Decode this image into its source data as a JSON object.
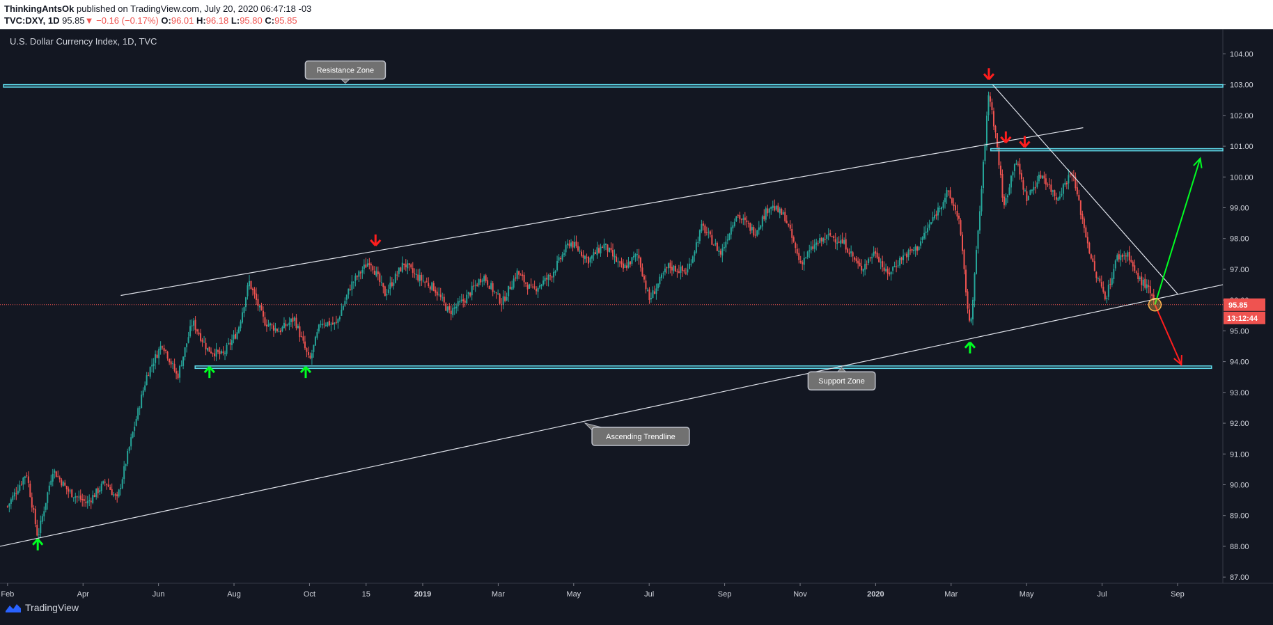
{
  "header": {
    "author": "ThinkingAntsOk",
    "published_text": "published on TradingView.com, July 20, 2020 06:47:18 -03",
    "symbol": "TVC:DXY, 1D",
    "last": "95.85",
    "change": "−0.16 (−0.17%)",
    "o_label": "O:",
    "o_value": "96.01",
    "h_label": "H:",
    "h_value": "96.18",
    "l_label": "L:",
    "l_value": "95.80",
    "c_label": "C:",
    "c_value": "95.85"
  },
  "footer": {
    "brand": "TradingView"
  },
  "colors": {
    "background": "#131722",
    "up": "#26a69a",
    "down": "#ef5350",
    "zone": "#5dd8e8",
    "grid_text": "#d1d4dc",
    "arrow_up": "#00ff22",
    "arrow_down": "#ff1e1e"
  },
  "chart_data": {
    "type": "candlestick",
    "title": "U.S. Dollar Currency Index, 1D, TVC",
    "x_ticks": [
      "Feb",
      "Apr",
      "Jun",
      "Aug",
      "Oct",
      "15",
      "2019",
      "Mar",
      "May",
      "Jul",
      "Sep",
      "Nov",
      "2020",
      "Mar",
      "May",
      "Jul",
      "Sep"
    ],
    "x_tick_months": [
      0,
      2,
      4,
      6,
      8,
      9.5,
      11,
      13,
      15,
      17,
      19,
      21,
      23,
      25,
      27,
      29,
      31
    ],
    "x_range_months": [
      -0.2,
      32.2
    ],
    "y_range": [
      86.8,
      104.8
    ],
    "y_ticks": [
      "104.00",
      "103.00",
      "102.00",
      "101.00",
      "100.00",
      "99.00",
      "98.00",
      "97.00",
      "96.00",
      "95.00",
      "94.00",
      "93.00",
      "92.00",
      "91.00",
      "90.00",
      "89.00",
      "88.00",
      "87.00"
    ],
    "price_path": [
      [
        0,
        89.3
      ],
      [
        0.5,
        90.4
      ],
      [
        0.8,
        88.3
      ],
      [
        1.2,
        90.5
      ],
      [
        1.6,
        89.8
      ],
      [
        2.1,
        89.4
      ],
      [
        2.6,
        90.1
      ],
      [
        2.9,
        89.5
      ],
      [
        3.3,
        91.6
      ],
      [
        3.7,
        93.6
      ],
      [
        4.1,
        94.6
      ],
      [
        4.5,
        93.5
      ],
      [
        4.9,
        95.3
      ],
      [
        5.3,
        94.4
      ],
      [
        5.7,
        94.2
      ],
      [
        6.1,
        95.0
      ],
      [
        6.4,
        96.6
      ],
      [
        6.8,
        95.3
      ],
      [
        7.2,
        95.0
      ],
      [
        7.6,
        95.4
      ],
      [
        8.0,
        94.0
      ],
      [
        8.3,
        95.3
      ],
      [
        8.7,
        95.2
      ],
      [
        9.1,
        96.5
      ],
      [
        9.6,
        97.3
      ],
      [
        10.0,
        96.2
      ],
      [
        10.5,
        97.2
      ],
      [
        10.8,
        96.8
      ],
      [
        11.3,
        96.4
      ],
      [
        11.7,
        95.6
      ],
      [
        12.1,
        96.0
      ],
      [
        12.6,
        96.8
      ],
      [
        13.1,
        95.9
      ],
      [
        13.5,
        96.9
      ],
      [
        13.9,
        96.3
      ],
      [
        14.4,
        96.8
      ],
      [
        14.9,
        97.9
      ],
      [
        15.4,
        97.3
      ],
      [
        15.8,
        97.8
      ],
      [
        16.3,
        97.0
      ],
      [
        16.7,
        97.5
      ],
      [
        17.0,
        96.0
      ],
      [
        17.5,
        97.1
      ],
      [
        18.0,
        96.9
      ],
      [
        18.4,
        98.4
      ],
      [
        18.9,
        97.5
      ],
      [
        19.3,
        98.8
      ],
      [
        19.8,
        98.2
      ],
      [
        20.2,
        99.1
      ],
      [
        20.6,
        98.7
      ],
      [
        21.0,
        97.2
      ],
      [
        21.4,
        97.8
      ],
      [
        21.8,
        98.1
      ],
      [
        22.2,
        97.8
      ],
      [
        22.6,
        97.0
      ],
      [
        23.0,
        97.6
      ],
      [
        23.3,
        96.8
      ],
      [
        23.7,
        97.4
      ],
      [
        24.1,
        97.7
      ],
      [
        24.5,
        98.6
      ],
      [
        24.9,
        99.5
      ],
      [
        25.2,
        98.7
      ],
      [
        25.5,
        95.0
      ],
      [
        25.8,
        99.5
      ],
      [
        26.0,
        102.8
      ],
      [
        26.2,
        101.2
      ],
      [
        26.4,
        99.0
      ],
      [
        26.7,
        100.6
      ],
      [
        27.0,
        99.3
      ],
      [
        27.4,
        100.1
      ],
      [
        27.8,
        99.3
      ],
      [
        28.2,
        100.2
      ],
      [
        28.5,
        98.5
      ],
      [
        28.8,
        96.9
      ],
      [
        29.1,
        96.1
      ],
      [
        29.4,
        97.4
      ],
      [
        29.7,
        97.5
      ],
      [
        29.9,
        96.8
      ],
      [
        30.2,
        96.4
      ],
      [
        30.4,
        95.85
      ]
    ],
    "support_zone": [
      93.78,
      93.86
    ],
    "resistance_zone": [
      102.92,
      103.0
    ],
    "mid_resistance": [
      100.85,
      100.92
    ],
    "channel_upper": [
      [
        3.0,
        96.15
      ],
      [
        28.5,
        101.6
      ]
    ],
    "ascending_trendline": [
      [
        -0.2,
        88.0
      ],
      [
        32.2,
        96.5
      ]
    ],
    "descending_trendline": [
      [
        26.1,
        103.0
      ],
      [
        31.0,
        96.2
      ]
    ],
    "current_price_level": 95.85,
    "projection_up": [
      [
        30.4,
        95.85
      ],
      [
        31.6,
        100.6
      ]
    ],
    "projection_down": [
      [
        30.4,
        95.85
      ],
      [
        31.1,
        93.9
      ]
    ],
    "down_arrows": [
      [
        9.75,
        97.95
      ],
      [
        26.0,
        103.35
      ],
      [
        26.45,
        101.3
      ],
      [
        26.95,
        101.15
      ]
    ],
    "up_arrows": [
      [
        0.8,
        88.05
      ],
      [
        5.35,
        93.65
      ],
      [
        7.9,
        93.65
      ],
      [
        25.5,
        94.45
      ]
    ],
    "annotations": [
      {
        "text": "Resistance Zone",
        "month": 8.95,
        "price": 103.0,
        "callout": "below"
      },
      {
        "text": "Support Zone",
        "month": 22.1,
        "price": 93.85,
        "callout": "above"
      },
      {
        "text": "Ascending Trendline",
        "month": 15.3,
        "price": 92.0,
        "callout": "up-left"
      }
    ],
    "price_label": "95.85",
    "countdown_label": "13:12:44"
  }
}
